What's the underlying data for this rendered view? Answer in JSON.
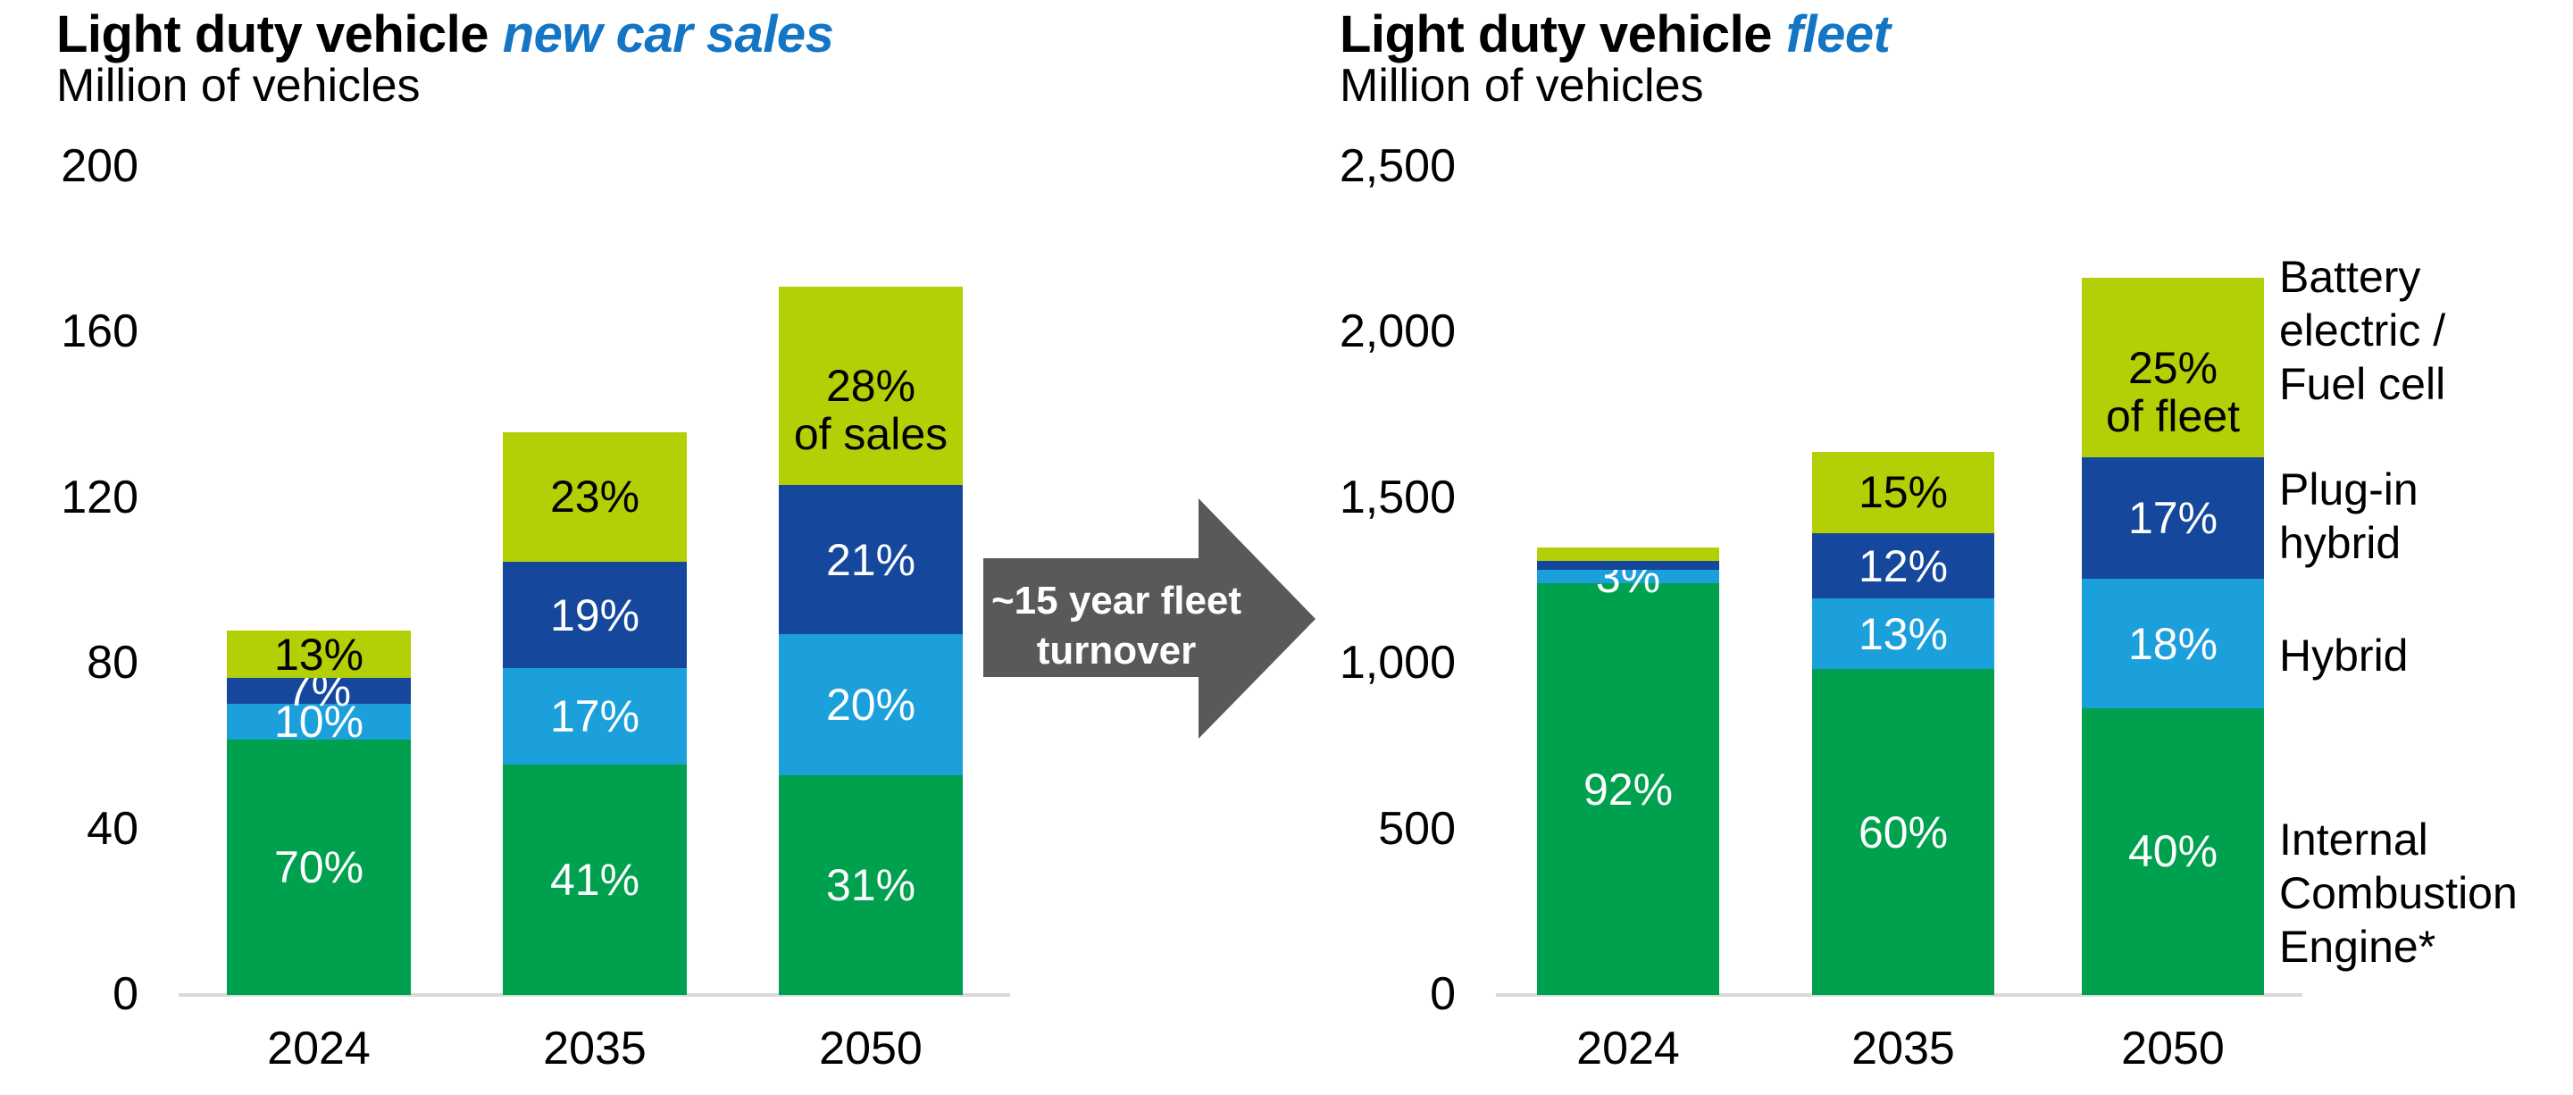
{
  "palette": {
    "ice_green": "#00A14E",
    "hybrid_blue": "#1CA0DC",
    "phev_blue": "#15489C",
    "bev_lime": "#B3CF06",
    "title_accent_blue": "#1375C4",
    "arrow_gray": "#58595B",
    "axis_line_gray": "#D9D9D9",
    "bar_label_light": "#FFFFFF",
    "bar_label_dark": "#000000",
    "text_color": "#000000"
  },
  "arrow": {
    "line1": "~15 year fleet",
    "line2": "turnover"
  },
  "legend": {
    "items": [
      {
        "key": "bev",
        "lines": [
          "Battery",
          "electric /",
          "Fuel cell"
        ]
      },
      {
        "key": "phev",
        "lines": [
          "Plug-in",
          "hybrid"
        ]
      },
      {
        "key": "hybrid",
        "lines": [
          "Hybrid"
        ]
      },
      {
        "key": "ice",
        "lines": [
          "Internal",
          "Combustion",
          "Engine*"
        ]
      }
    ]
  },
  "chart_data": [
    {
      "type": "bar",
      "stacked": true,
      "title": "Light duty vehicle new car sales",
      "title_main": "Light duty vehicle",
      "title_accent": "new car sales",
      "subtitle": "Million of vehicles",
      "ylabel": "Million of vehicles",
      "ylim": [
        0,
        200
      ],
      "y_tick_labels": [
        "200",
        "160",
        "120",
        "80",
        "40",
        "0"
      ],
      "categories": [
        "2024",
        "2035",
        "2050"
      ],
      "totals_million_approx": [
        88,
        136,
        171
      ],
      "series": [
        {
          "key": "ice",
          "name": "Internal Combustion Engine*",
          "pct": [
            70,
            41,
            31
          ]
        },
        {
          "key": "hybrid",
          "name": "Hybrid",
          "pct": [
            10,
            17,
            20
          ]
        },
        {
          "key": "phev",
          "name": "Plug-in hybrid",
          "pct": [
            7,
            19,
            21
          ]
        },
        {
          "key": "bev",
          "name": "Battery electric / Fuel cell",
          "pct": [
            13,
            23,
            28
          ]
        }
      ],
      "bars": [
        {
          "category": "2024",
          "total_million": 88,
          "segments": [
            {
              "series": "ice",
              "pct": 70,
              "label": "70%"
            },
            {
              "series": "hybrid",
              "pct": 10,
              "label": "10%"
            },
            {
              "series": "phev",
              "pct": 7,
              "label": "7%"
            },
            {
              "series": "bev",
              "pct": 13,
              "label": "13%"
            }
          ]
        },
        {
          "category": "2035",
          "total_million": 136,
          "segments": [
            {
              "series": "ice",
              "pct": 41,
              "label": "41%"
            },
            {
              "series": "hybrid",
              "pct": 17,
              "label": "17%"
            },
            {
              "series": "phev",
              "pct": 19,
              "label": "19%"
            },
            {
              "series": "bev",
              "pct": 23,
              "label": "23%"
            }
          ]
        },
        {
          "category": "2050",
          "total_million": 171,
          "segments": [
            {
              "series": "ice",
              "pct": 31,
              "label": "31%"
            },
            {
              "series": "hybrid",
              "pct": 20,
              "label": "20%"
            },
            {
              "series": "phev",
              "pct": 21,
              "label": "21%"
            },
            {
              "series": "bev",
              "pct": 28,
              "label": "28%",
              "label2": "of sales"
            }
          ]
        }
      ]
    },
    {
      "type": "bar",
      "stacked": true,
      "title": "Light duty vehicle fleet",
      "title_main": "Light duty vehicle",
      "title_accent": "fleet",
      "subtitle": "Million of vehicles",
      "ylabel": "Million of vehicles",
      "ylim": [
        0,
        2500
      ],
      "y_tick_labels": [
        "2,500",
        "2,000",
        "1,500",
        "1,000",
        "500",
        "0"
      ],
      "categories": [
        "2024",
        "2035",
        "2050"
      ],
      "totals_million_approx": [
        1350,
        1640,
        2165
      ],
      "series": [
        {
          "key": "ice",
          "name": "Internal Combustion Engine*",
          "pct": [
            92,
            60,
            40
          ]
        },
        {
          "key": "hybrid",
          "name": "Hybrid",
          "pct": [
            3,
            13,
            18
          ]
        },
        {
          "key": "phev",
          "name": "Plug-in hybrid",
          "pct": [
            2,
            12,
            17
          ]
        },
        {
          "key": "bev",
          "name": "Battery electric / Fuel cell",
          "pct": [
            3,
            15,
            25
          ]
        }
      ],
      "bars": [
        {
          "category": "2024",
          "total_million": 1350,
          "segments": [
            {
              "series": "ice",
              "pct": 92,
              "label": "92%"
            },
            {
              "series": "hybrid",
              "pct": 3,
              "label": "3%"
            },
            {
              "series": "phev",
              "pct": 2,
              "label": null
            },
            {
              "series": "bev",
              "pct": 3,
              "label": null
            }
          ]
        },
        {
          "category": "2035",
          "total_million": 1640,
          "segments": [
            {
              "series": "ice",
              "pct": 60,
              "label": "60%"
            },
            {
              "series": "hybrid",
              "pct": 13,
              "label": "13%"
            },
            {
              "series": "phev",
              "pct": 12,
              "label": "12%"
            },
            {
              "series": "bev",
              "pct": 15,
              "label": "15%"
            }
          ]
        },
        {
          "category": "2050",
          "total_million": 2165,
          "segments": [
            {
              "series": "ice",
              "pct": 40,
              "label": "40%"
            },
            {
              "series": "hybrid",
              "pct": 18,
              "label": "18%"
            },
            {
              "series": "phev",
              "pct": 17,
              "label": "17%"
            },
            {
              "series": "bev",
              "pct": 25,
              "label": "25%",
              "label2": "of fleet"
            }
          ]
        }
      ]
    }
  ]
}
